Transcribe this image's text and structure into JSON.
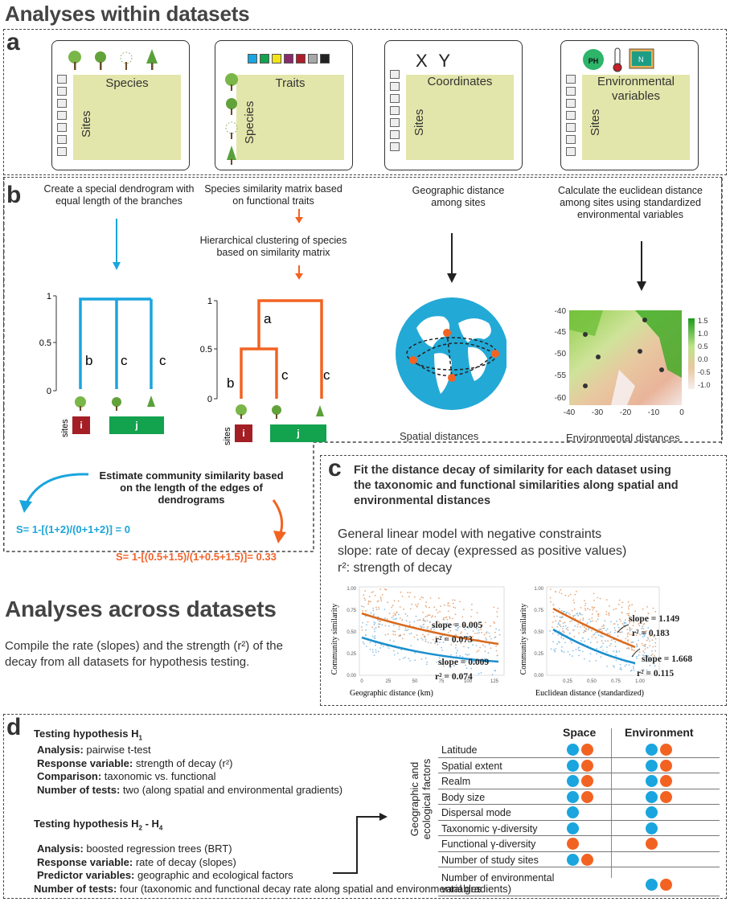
{
  "titles": {
    "within": "Analyses within datasets",
    "across": "Analyses across datasets"
  },
  "panel_labels": {
    "a": "a",
    "b": "b",
    "c": "c",
    "d": "d"
  },
  "panel_a": {
    "cards": [
      {
        "row": "Species",
        "col": "Sites"
      },
      {
        "row": "Traits",
        "col": "Species"
      },
      {
        "row": "Coordinates",
        "col": "Sites",
        "header": "X Y"
      },
      {
        "row": "Environmental variables",
        "col": "Sites"
      }
    ],
    "trait_colors": [
      "#1aa5de",
      "#13a24e",
      "#f2e318",
      "#8a2a6b",
      "#b01d2a",
      "#a8a8a8",
      "#222222"
    ],
    "ph_text": "PH",
    "map_text": "N"
  },
  "panel_b": {
    "col1_text": "Create a special dendrogram with equal length of the branches",
    "col2_text1": "Species similarity matrix based on functional traits",
    "col2_text2": "Hierarchical clustering of species based on similarity matrix",
    "col3_text": "Geographic distance among sites",
    "col4_text": "Calculate the euclidean distance among sites using standardized environmental variables",
    "dendro_ticks": [
      "1",
      "0.5",
      "0"
    ],
    "branch_b": "b",
    "branch_c": "c",
    "branch_a": "a",
    "sites_label": "sites",
    "site_i": "i",
    "site_j": "j",
    "spatial_caption": "Spatial distances",
    "env_caption": "Environmental distances",
    "heat_yticks": [
      "-40",
      "-45",
      "-50",
      "-55",
      "-60"
    ],
    "heat_xticks": [
      "-40",
      "-30",
      "-20",
      "-10",
      "0"
    ],
    "legend_ticks": [
      "1.5",
      "1.0",
      "0.5",
      "0.0",
      "-0.5",
      "-1.0"
    ],
    "estimate_text": "Estimate community similarity based on the length of the edges of dendrograms",
    "formula_blue": "S= 1-[(1+2)/(0+1+2)] = 0",
    "formula_red": "S= 1-[(0.5+1.5)/(1+0.5+1.5)]= 0.33"
  },
  "panel_c": {
    "heading": "Fit the distance decay of similarity for each dataset using the taxonomic and functional similarities along spatial and environmental distances",
    "model1": "General linear model with negative constraints",
    "model2": "slope: rate of decay (expressed as positive values)",
    "model3": "r²: strength of decay",
    "ylabel": "Community similarity",
    "plot1_xlabel": "Geographic distance (km)",
    "plot2_xlabel": "Euclidean distance (standardized)",
    "plot1_xticks": [
      "0",
      "25",
      "50",
      "75",
      "100",
      "125"
    ],
    "plot2_xticks": [
      "0.25",
      "0.50",
      "0.75",
      "1.00"
    ],
    "yticks": [
      "1.00",
      "0.75",
      "0.50",
      "0.25",
      "0.00"
    ],
    "plot1_orange": {
      "slope": "slope = 0.005",
      "r2": "r² = 0.073"
    },
    "plot1_blue": {
      "slope": "slope = 0.009",
      "r2": "r² = 0.074"
    },
    "plot2_orange": {
      "slope": "slope = 1.149",
      "r2": "r² = 0.183"
    },
    "plot2_blue": {
      "slope": "slope = 1.668",
      "r2": "r² = 0.115"
    },
    "colors": {
      "orange": "#d86a1e",
      "blue": "#1a8fce"
    }
  },
  "across": {
    "text": "Compile the rate (slopes) and the strength (r²) of the decay from all datasets for hypothesis testing."
  },
  "panel_d": {
    "h1_title": "Testing hypothesis H",
    "h1_sub": "1",
    "h1_lines": [
      {
        "k": "Analysis:",
        "v": " pairwise t-test"
      },
      {
        "k": "Response variable:",
        "v": " strength of decay (r²)"
      },
      {
        "k": "Comparison:",
        "v": " taxonomic vs. functional"
      },
      {
        "k": "Number of tests:",
        "v": " two (along spatial and environmental gradients)"
      }
    ],
    "h2_title": "Testing hypothesis H",
    "h2_sub1": "2",
    "h2_mid": " - H",
    "h2_sub2": "4",
    "h2_lines": [
      {
        "k": "Analysis:",
        "v": " boosted regression trees (BRT)"
      },
      {
        "k": "Response variable:",
        "v": " rate of decay (slopes)"
      },
      {
        "k": "Predictor variables:",
        "v": " geographic and ecological factors"
      },
      {
        "k": "Number of tests:",
        "v": " four (taxonomic and functional decay rate along spatial and environmental gradients)"
      }
    ],
    "col_space": "Space",
    "col_env": "Environment",
    "side_label": "Geographic and ecological factors",
    "factors": [
      {
        "name": "Latitude",
        "space": [
          "blue",
          "red"
        ],
        "env": [
          "blue",
          "red"
        ]
      },
      {
        "name": "Spatial extent",
        "space": [
          "blue",
          "red"
        ],
        "env": [
          "blue",
          "red"
        ]
      },
      {
        "name": "Realm",
        "space": [
          "blue",
          "red"
        ],
        "env": [
          "blue",
          "red"
        ]
      },
      {
        "name": "Body size",
        "space": [
          "blue",
          "red"
        ],
        "env": [
          "blue",
          "red"
        ]
      },
      {
        "name": "Dispersal mode",
        "space": [
          "blue"
        ],
        "env": [
          "blue"
        ]
      },
      {
        "name": "Taxonomic γ-diversity",
        "space": [
          "blue"
        ],
        "env": [
          "blue"
        ]
      },
      {
        "name": "Functional γ-diversity",
        "space": [
          "red"
        ],
        "env": [
          "red"
        ]
      },
      {
        "name": "Number of study sites",
        "space": [
          "blue",
          "red"
        ],
        "env": []
      },
      {
        "name": "Number of environmental variables",
        "space": [],
        "env": [
          "blue",
          "red"
        ]
      }
    ]
  }
}
